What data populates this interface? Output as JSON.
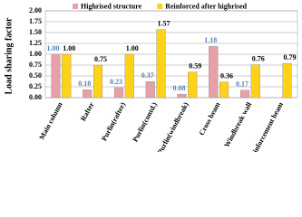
{
  "chart_data": {
    "type": "bar",
    "y_label": "Load sharing factor",
    "categories": [
      "Main column",
      "Rafter",
      "Purlin(rafter)",
      "Purlin(contd.)",
      "Purlin(windbreak)",
      "Cross beam",
      "Windbreak wall",
      "Reinforcement beam"
    ],
    "series": [
      {
        "name": "Highrised structure",
        "color": "#e8a0a8",
        "values": [
          1.0,
          0.18,
          0.23,
          0.37,
          0.08,
          1.18,
          0.17,
          null
        ],
        "value_labels": [
          "1.00",
          "0.18",
          "0.23",
          "0.37",
          "0.08",
          "1.18",
          "0.17",
          null
        ]
      },
      {
        "name": "Reinforced after highrised",
        "color": "#ffd21a",
        "values": [
          1.0,
          0.75,
          1.0,
          1.57,
          0.59,
          0.36,
          0.76,
          0.79
        ],
        "value_labels": [
          "1.00",
          "0.75",
          "1.00",
          "1.57",
          "0.59",
          "0.36",
          "0.76",
          "0.79"
        ]
      }
    ],
    "ylim": [
      0,
      2
    ],
    "yticks": [
      {
        "value": 0,
        "label": "0.00"
      },
      {
        "value": 0.25,
        "label": "0.25"
      },
      {
        "value": 0.5,
        "label": "0.50"
      },
      {
        "value": 0.75,
        "label": "0.75"
      },
      {
        "value": 1,
        "label": "1.00"
      },
      {
        "value": 1.25,
        "label": "1.25"
      },
      {
        "value": 1.5,
        "label": "1.50"
      },
      {
        "value": 1.75,
        "label": "1.75"
      },
      {
        "value": 2,
        "label": "2.00"
      }
    ],
    "grid": true,
    "legend": "top"
  }
}
